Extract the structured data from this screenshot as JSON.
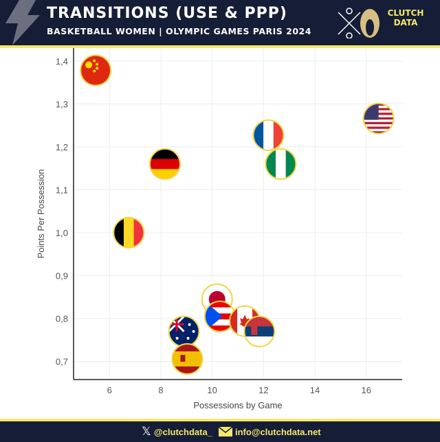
{
  "header": {
    "title": "TRANSITIONS (USE & PPP)",
    "subtitle": "BASKETBALL WOMEN | OLYMPIC GAMES PARIS 2024",
    "logo_text": "CLUTCH DATA"
  },
  "footer": {
    "twitter": "@clutchdata_",
    "email": "info@clutchdata.net"
  },
  "colors": {
    "header_bg": "#161d36",
    "accent": "#f3e86b",
    "marker_border": "#f0d64a"
  },
  "chart_data": {
    "type": "scatter",
    "title": "",
    "xlabel": "Possessions by Game",
    "ylabel": "Points Per Possession",
    "xlim": [
      4.6,
      17.4
    ],
    "ylim": [
      0.658,
      1.43
    ],
    "xticks": [
      6,
      8,
      10,
      12,
      14,
      16
    ],
    "yticks": [
      "0,7",
      "0,8",
      "0,9",
      "1,0",
      "1,1",
      "1,2",
      "1,3",
      "1,4"
    ],
    "ytick_values": [
      0.7,
      0.8,
      0.9,
      1.0,
      1.1,
      1.2,
      1.3,
      1.4
    ],
    "grid": true,
    "points": [
      {
        "team": "China",
        "x": 5.46,
        "y": 1.378,
        "flag": "china"
      },
      {
        "team": "USA",
        "x": 16.48,
        "y": 1.266,
        "flag": "usa"
      },
      {
        "team": "France",
        "x": 12.19,
        "y": 1.227,
        "flag": "france"
      },
      {
        "team": "Nigeria",
        "x": 12.67,
        "y": 1.16,
        "flag": "nigeria"
      },
      {
        "team": "Germany",
        "x": 8.16,
        "y": 1.16,
        "flag": "germany"
      },
      {
        "team": "Belgium",
        "x": 6.75,
        "y": 1.0,
        "flag": "belgium"
      },
      {
        "team": "Japan",
        "x": 10.19,
        "y": 0.845,
        "flag": "japan"
      },
      {
        "team": "Puerto Rico",
        "x": 10.3,
        "y": 0.805,
        "flag": "puerto-rico"
      },
      {
        "team": "Canada",
        "x": 11.27,
        "y": 0.794,
        "flag": "canada"
      },
      {
        "team": "Serbia",
        "x": 11.84,
        "y": 0.77,
        "flag": "serbia"
      },
      {
        "team": "Australia",
        "x": 8.9,
        "y": 0.77,
        "flag": "australia"
      },
      {
        "team": "Spain",
        "x": 9.03,
        "y": 0.706,
        "flag": "spain"
      }
    ]
  }
}
